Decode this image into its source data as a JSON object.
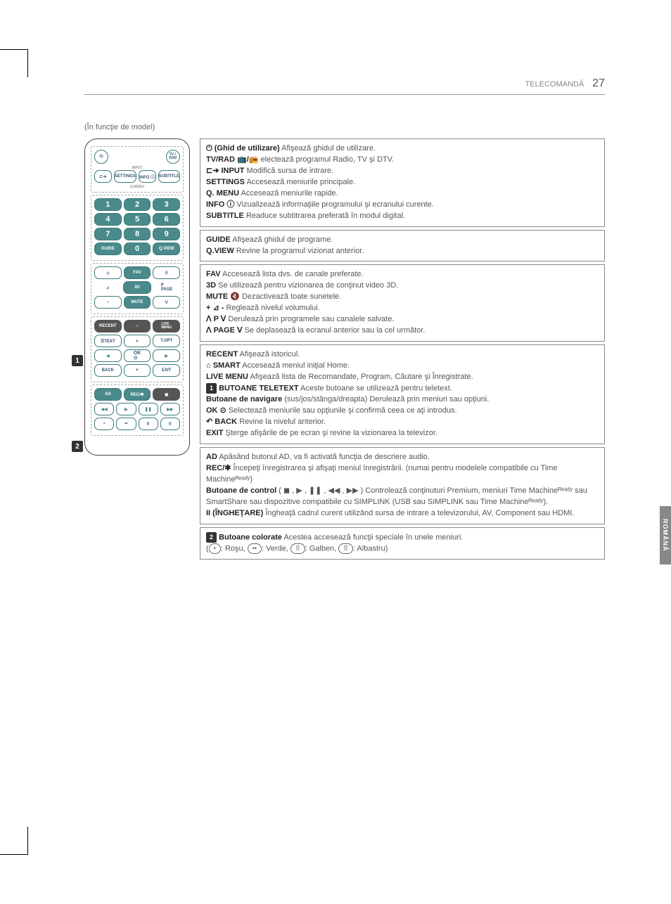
{
  "header": {
    "section": "TELECOMANDĂ",
    "page_number": "27"
  },
  "subtitle": "(În funcţie de model)",
  "side_tab": "ROMÂNĂ",
  "remote": {
    "top": {
      "power_icon": "⏻",
      "tv_rad": "TV /\nRAD",
      "input": "INPUT",
      "settings": "SETTINGS",
      "info": "INFO ⓘ",
      "subtitle": "SUBTITLE",
      "qmenu": "Q.MENU"
    },
    "numbers": [
      "1",
      "2",
      "3",
      "4",
      "5",
      "6",
      "7",
      "8",
      "9",
      "0"
    ],
    "mid": {
      "guide": "GUIDE",
      "qview": "Q.VIEW",
      "fav": "FAV",
      "threeD": "3D",
      "mute": "MUTE",
      "page": "P\nPAGE"
    },
    "nav": {
      "recent": "RECENT",
      "smart": "SMART",
      "live_menu": "LIVE\nMENU",
      "text": "☰TEXT",
      "topt": "T.OPT",
      "ok": "OK\n⊙",
      "back": "BACK",
      "exit": "EXIT"
    },
    "bottom": {
      "ad": "AD",
      "rec": "REC/✱"
    },
    "callouts": {
      "c1": "1",
      "c2": "2"
    }
  },
  "boxes": [
    {
      "lines": [
        {
          "b": "⏻ (Ghid de utilizare)",
          "t": " Afişează ghidul de utilizare."
        },
        {
          "b": "TV/RAD 📺/📻",
          "t": " electează programul Radio, TV şi DTV."
        },
        {
          "b": "⊏➔ INPUT",
          "t": " Modifică sursa de intrare."
        },
        {
          "b": "SETTINGS",
          "t": " Accesează meniurile principale."
        },
        {
          "b": "Q. MENU",
          "t": " Accesează meniurile rapide."
        },
        {
          "b": "INFO ⓘ",
          "t": " Vizualizează informaţiile programului şi ecranului curente."
        },
        {
          "b": "SUBTITLE",
          "t": " Readuce subtitrarea preferată în modul digital."
        }
      ]
    },
    {
      "lines": [
        {
          "b": "GUIDE",
          "t": " Afişează ghidul de programe."
        },
        {
          "b": "Q.VIEW",
          "t": " Revine la programul vizionat anterior."
        }
      ]
    },
    {
      "lines": [
        {
          "b": "FAV",
          "t": " Accesează lista dvs. de canale preferate."
        },
        {
          "b": "3D",
          "t": " Se utilizează pentru vizionarea de conţinut video 3D."
        },
        {
          "b": "MUTE 🔇",
          "t": " Dezactivează toate sunetele."
        },
        {
          "b": "+ ⊿ -",
          "t": " Reglează nivelul volumului."
        },
        {
          "b": "ᐱ P ᐯ",
          "t": " Derulează prin programele sau canalele salvate."
        },
        {
          "b": "ᐱ PAGE ᐯ",
          "t": " Se deplasează la ecranul anterior sau la cel următor."
        }
      ]
    },
    {
      "lines": [
        {
          "b": "RECENT",
          "t": " Afişează istoricul."
        },
        {
          "b": "⌂ SMART",
          "t": " Accesează meniul iniţial Home."
        },
        {
          "b": "LIVE MENU",
          "t": " Afişează lista de Recomandate, Program, Căutare şi Înregistrate."
        },
        {
          "badge": "1",
          "b": " BUTOANE TELETEXT",
          "t": " Aceste butoane se utilizează pentru teletext."
        },
        {
          "b": "Butoane de navigare",
          "t": " (sus/jos/stânga/dreapta) Derulează prin meniuri sau opţiuni."
        },
        {
          "b": "OK ⊙",
          "t": " Selectează meniurile sau opţiunile şi confirmă ceea ce aţi introdus."
        },
        {
          "b": "↶ BACK",
          "t": " Revine la nivelul anterior."
        },
        {
          "b": "EXIT",
          "t": " Şterge afişările de pe ecran şi revine la vizionarea la televizor."
        }
      ]
    },
    {
      "lines": [
        {
          "b": "AD",
          "t": " Apăsând butonul AD, va fi activată funcţia de descriere audio."
        },
        {
          "b": "REC/✱",
          "t": " Începeţi înregistrarea şi afişaţi meniul înregistrării. (numai pentru modelele compatibile cu Time Machineᴿᵉᵃᵈʸ)"
        },
        {
          "b": "Butoane de control",
          "t": " ( ◼ , ▶ , ❚❚ , ◀◀ , ▶▶ ) Controlează conţinuturi Premium, meniuri Time Machineᴿᵉᵃᵈʸ sau SmartShare sau dispozitive compatibile cu SIMPLINK (USB sau SIMPLINK sau Time Machineᴿᵉᵃᵈʸ)."
        },
        {
          "b": "II (ÎNGHEŢARE)",
          "t": " Îngheaţă cadrul curent utilizând sursa de intrare a televizorului, AV, Component sau HDMI."
        }
      ]
    },
    {
      "lines": [
        {
          "badge": "2",
          "b": " Butoane colorate",
          "t": " Acestea accesează funcţii speciale în unele meniuri."
        }
      ],
      "color_line": {
        "red": "Roşu",
        "green": "Verde",
        "yellow": "Galben",
        "blue": "Albastru"
      }
    }
  ]
}
